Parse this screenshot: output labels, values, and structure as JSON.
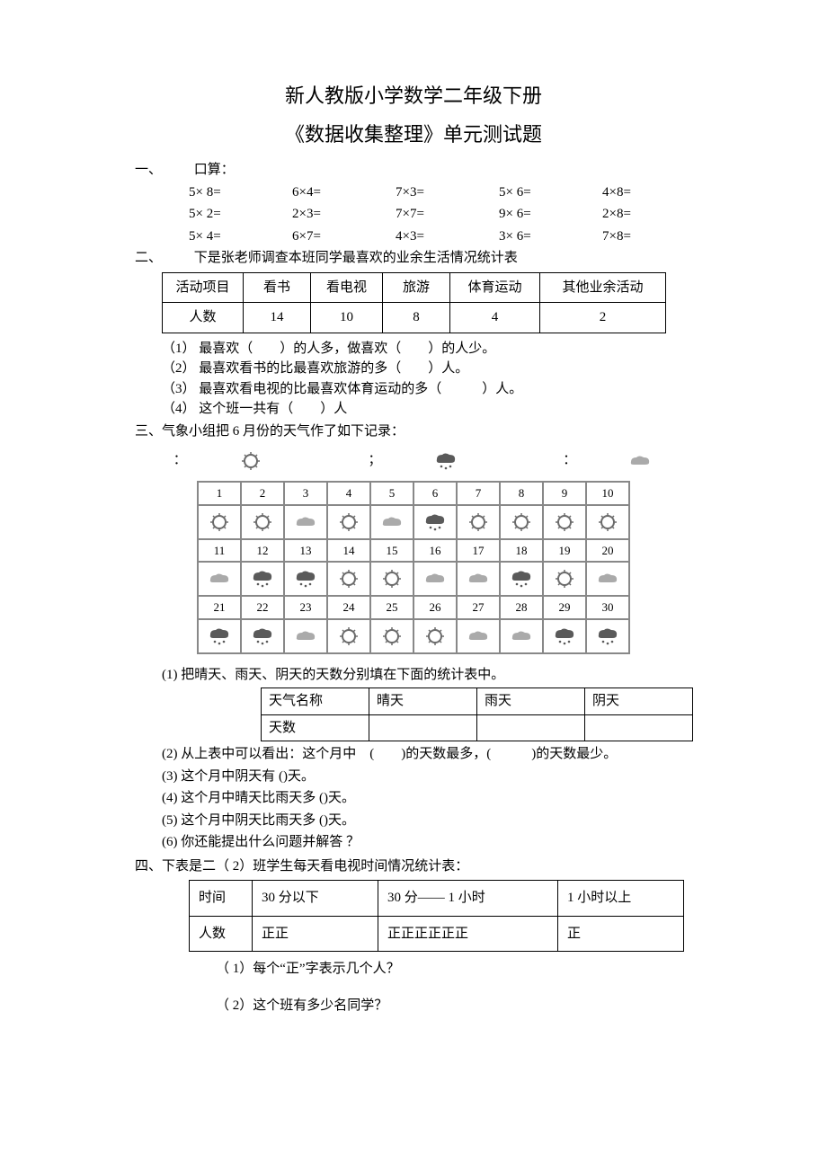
{
  "title1": "新人教版小学数学二年级下册",
  "title2": "《数据收集整理》单元测试题",
  "sec1": {
    "label": "一、",
    "header": "口算：",
    "rows": [
      [
        "5× 8=",
        "6×4=",
        "7×3=",
        "5× 6=",
        "4×8="
      ],
      [
        "5× 2=",
        "2×3=",
        "7×7=",
        "9× 6=",
        "2×8="
      ],
      [
        "5× 4=",
        "6×7=",
        "4×3=",
        "3× 6=",
        "7×8="
      ]
    ]
  },
  "sec2": {
    "label": "二、",
    "header": "下是张老师调查本班同学最喜欢的业余生活情况统计表",
    "cols": [
      "活动项目",
      "看书",
      "看电视",
      "旅游",
      "体育运动",
      "其他业余活动"
    ],
    "row2": [
      "人数",
      "14",
      "10",
      "8",
      "4",
      "2"
    ],
    "q": [
      "（1） 最喜欢（　　）的人多，做喜欢（　　）的人少。",
      "（2） 最喜欢看书的比最喜欢旅游的多（　　）人。",
      "（3） 最喜欢看电视的比最喜欢体育运动的多（　　　）人。",
      "（4） 这个班一共有（　　）人"
    ]
  },
  "sec3": {
    "label": "三、",
    "header": "气象小组把  6 月份的天气作了如下记录：",
    "legend": {
      "sunny": "：",
      "rainy": "；",
      "cloudy": "："
    },
    "cal_type": [
      "s",
      "s",
      "c",
      "s",
      "c",
      "r",
      "s",
      "s",
      "s",
      "s",
      "c",
      "r",
      "r",
      "s",
      "s",
      "c",
      "c",
      "r",
      "s",
      "c",
      "r",
      "r",
      "c",
      "s",
      "s",
      "s",
      "c",
      "c",
      "r",
      "r"
    ],
    "q1": "(1) 把晴天、雨天、阴天的天数分别填在下面的统计表中。",
    "wt": {
      "r1": [
        "天气名称",
        "晴天",
        "雨天",
        "阴天"
      ],
      "r2": [
        "天数",
        "",
        "",
        ""
      ]
    },
    "q2": "(2) 从上表中可以看出：这个月中　(　　)的天数最多，(　　　)的天数最少。",
    "q3": "(3) 这个月中阴天有 ()天。",
    "q4": "(4) 这个月中晴天比雨天多 ()天。",
    "q5": "(5) 这个月中阴天比雨天多 ()天。",
    "q6": "(6) 你还能提出什么问题并解答 ？"
  },
  "sec4": {
    "label": "四、",
    "header": "下表是二（ 2）班学生每天看电视时间情况统计表：",
    "r1": [
      "时间",
      "30 分以下",
      "30 分—— 1 小时",
      "1 小时以上"
    ],
    "r2": [
      "人数",
      "正正",
      "正正正正正正",
      "正"
    ],
    "q1": "（ 1）每个“正”字表示几个人？",
    "q2": "（ 2）这个班有多少名同学？"
  },
  "svg": {
    "sunny_stroke": "#6b6b6b",
    "rainy_fill": "#5a5a5a",
    "cloudy_fill": "#aaaaaa"
  }
}
